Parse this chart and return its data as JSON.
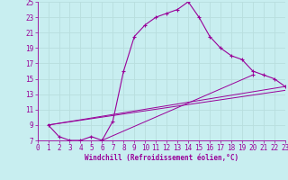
{
  "xlabel": "Windchill (Refroidissement éolien,°C)",
  "background_color": "#c8eef0",
  "grid_color": "#b8dede",
  "line_color": "#990099",
  "xlim": [
    0,
    23
  ],
  "ylim": [
    7,
    25
  ],
  "xticks": [
    0,
    1,
    2,
    3,
    4,
    5,
    6,
    7,
    8,
    9,
    10,
    11,
    12,
    13,
    14,
    15,
    16,
    17,
    18,
    19,
    20,
    21,
    22,
    23
  ],
  "yticks": [
    7,
    9,
    11,
    13,
    15,
    17,
    19,
    21,
    23,
    25
  ],
  "line1_x": [
    1,
    2,
    3,
    4,
    5,
    6,
    7,
    8,
    9,
    10,
    11,
    12,
    13,
    14,
    15,
    16,
    17,
    18,
    19,
    20,
    21,
    22,
    23
  ],
  "line1_y": [
    9,
    7.5,
    7,
    7,
    7.5,
    7,
    9.5,
    16,
    20.5,
    22,
    23,
    23.5,
    24,
    25,
    23,
    20.5,
    19,
    18,
    17.5,
    16,
    15.5,
    15,
    14
  ],
  "line2_x": [
    1,
    23
  ],
  "line2_y": [
    9,
    14
  ],
  "line3_x": [
    1,
    23
  ],
  "line3_y": [
    9,
    13.5
  ],
  "line4_x": [
    6,
    20
  ],
  "line4_y": [
    7,
    15.5
  ],
  "xlabel_fontsize": 5.5,
  "tick_fontsize": 5.5,
  "font_family": "monospace"
}
